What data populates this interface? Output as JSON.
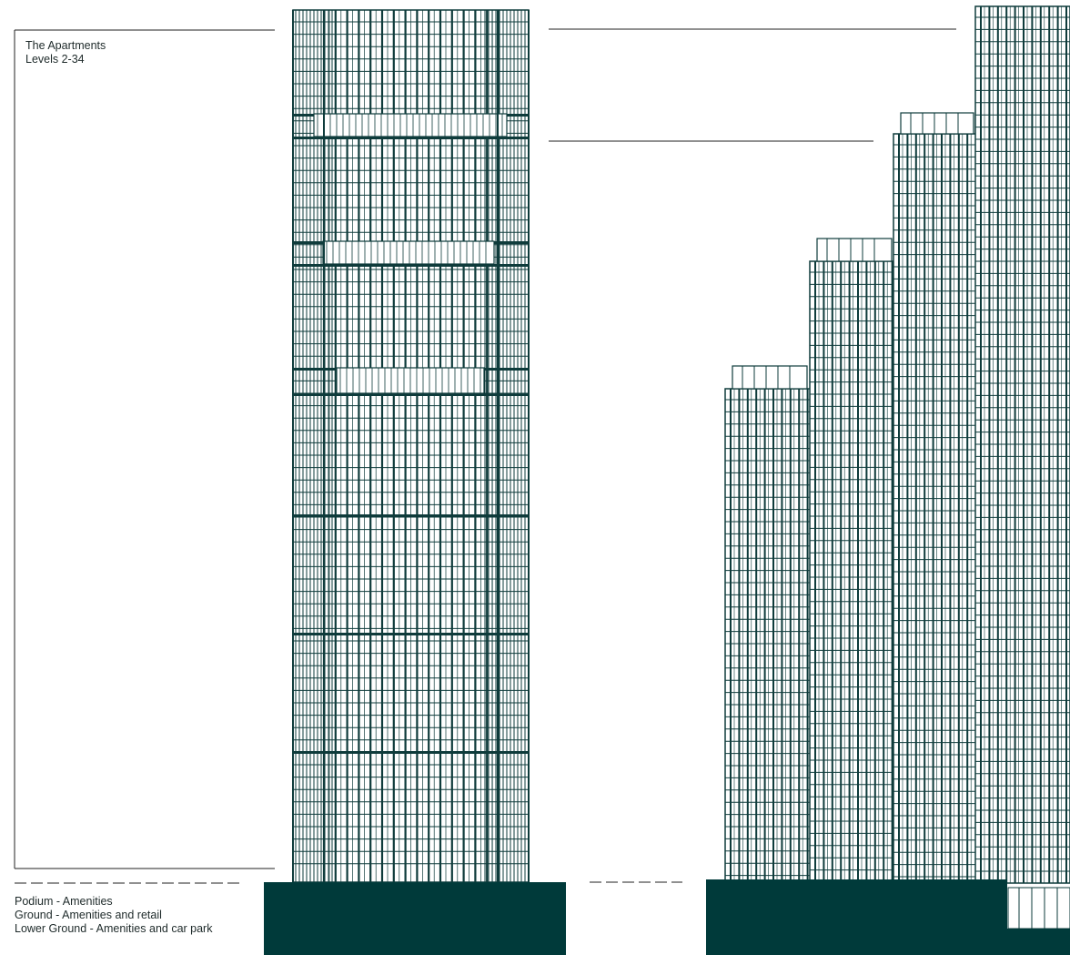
{
  "colors": {
    "ink": "#0e3b3b",
    "base": "#003a3a",
    "line": "#222222",
    "background": "#ffffff"
  },
  "labels": {
    "apartments_title": "The Apartments",
    "apartments_levels": "Levels 2-34",
    "podium": "Podium - Amenities",
    "ground": "Ground - Amenities and retail",
    "lower_ground": "Lower Ground - Amenities and car park"
  }
}
